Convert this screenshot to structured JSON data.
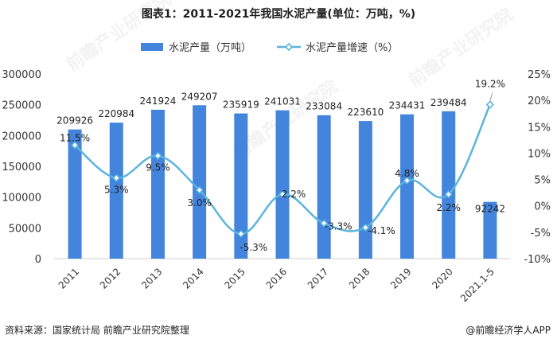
{
  "title": "图表1：2011-2021年我国水泥产量(单位：万吨，%)",
  "source": "资料来源：国家统计局 前瞻产业研究院整理",
  "brand": "@前瞻经济学人APP",
  "watermark": "前瞻产业研究院",
  "colors": {
    "bar": "#4384dc",
    "line": "#5ab4dd",
    "axis": "#d0d0d0"
  },
  "chart_data": {
    "type": "bar",
    "categories": [
      "2011",
      "2012",
      "2013",
      "2014",
      "2015",
      "2016",
      "2017",
      "2018",
      "2019",
      "2020",
      "2021.1-5"
    ],
    "series": [
      {
        "name": "水泥产量（万吨）",
        "type": "bar",
        "axis": "left",
        "values": [
          209926,
          220984,
          241924,
          249207,
          235919,
          241031,
          233084,
          223610,
          234431,
          239484,
          92242
        ],
        "labels": [
          "209926",
          "220984",
          "241924",
          "249207",
          "235919",
          "241031",
          "233084",
          "223610",
          "234431",
          "239484",
          "92242"
        ]
      },
      {
        "name": "水泥产量增速（%）",
        "type": "line",
        "axis": "right",
        "values": [
          11.5,
          5.3,
          9.5,
          3.0,
          -5.3,
          2.2,
          -3.3,
          -4.1,
          4.8,
          2.2,
          19.2
        ],
        "labels": [
          "11.5%",
          "5.3%",
          "9.5%",
          "3.0%",
          "-5.3%",
          "2.2%",
          "-3.3%",
          "-4.1%",
          "4.8%",
          "2.2%",
          "19.2%"
        ]
      }
    ],
    "y_left": {
      "ylim": [
        0,
        300000
      ],
      "ticks": [
        "0",
        "50000",
        "100000",
        "150000",
        "200000",
        "250000",
        "300000"
      ]
    },
    "y_right": {
      "ylim": [
        -10,
        25
      ],
      "ticks": [
        "-10%",
        "-5%",
        "0%",
        "5%",
        "10%",
        "15%",
        "20%",
        "25%"
      ]
    },
    "legend_position": "top-center",
    "grid": false
  }
}
